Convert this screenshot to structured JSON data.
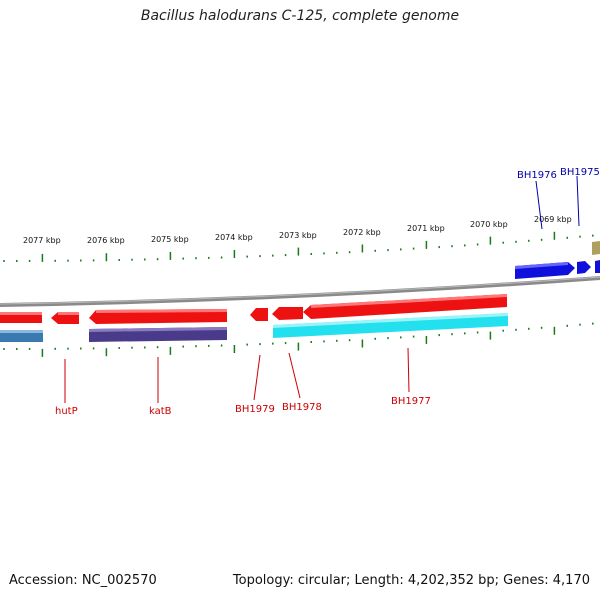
{
  "title": "Bacillus halodurans C-125, complete genome",
  "footer": {
    "accession": "Accession: NC_002570",
    "topology": "Topology: circular; Length: 4,202,352 bp; Genes: 4,170"
  },
  "colors": {
    "backbone": "#8a8a8a",
    "tick": "#1a7a1a",
    "red_gene": "#ee1111",
    "blue_gene": "#1010dd",
    "cyan_gene": "#22e0ee",
    "purple_gene": "#4a3a8a",
    "steel_gene": "#3a7ab0",
    "olive_gene": "#b0a060",
    "red_label": "#cc0000",
    "blue_label": "#0000aa"
  },
  "scale_labels": [
    "2077 kbp",
    "2076 kbp",
    "2075 kbp",
    "2074 kbp",
    "2073 kbp",
    "2072 kbp",
    "2071 kbp",
    "2070 kbp",
    "2069 kbp"
  ],
  "gene_labels": {
    "hutP": "hutP",
    "katB": "katB",
    "BH1979": "BH1979",
    "BH1978": "BH1978",
    "BH1977": "BH1977",
    "BH1976": "BH1976",
    "BH1975": "BH1975"
  }
}
